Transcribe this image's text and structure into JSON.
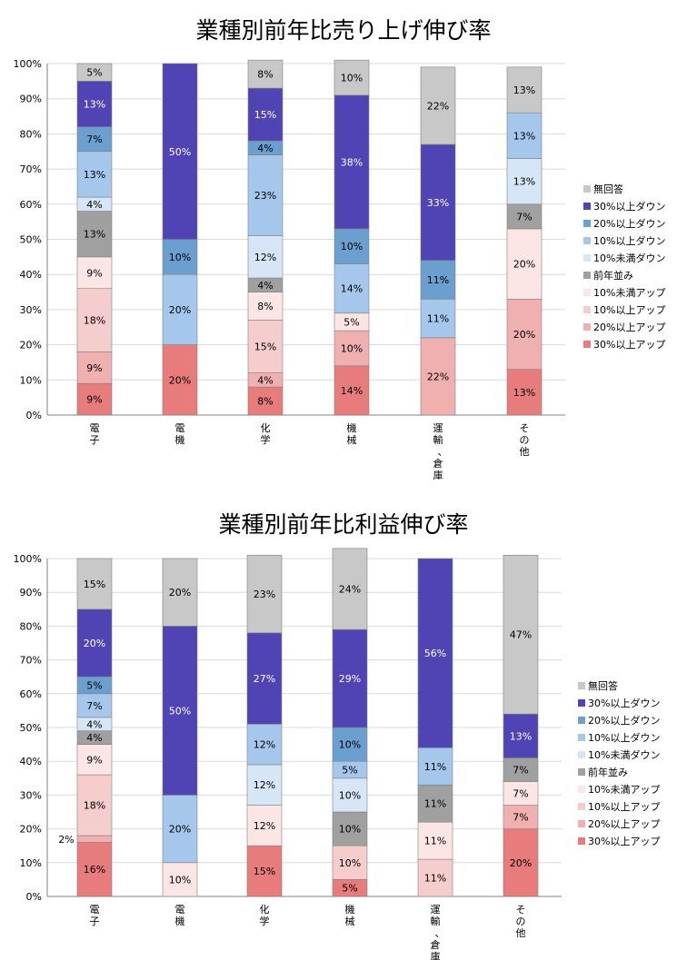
{
  "series_colors": {
    "no_answer": "#c8c8c8",
    "down_30": "#5044b4",
    "down_20": "#6a9fd0",
    "down_10": "#a6c7ec",
    "down_lt10": "#d6e6f7",
    "flat": "#a0a0a0",
    "up_lt10": "#fbe5e5",
    "up_10": "#f5cdcd",
    "up_20": "#f0b0b0",
    "up_30": "#e87b7b"
  },
  "chart_data": [
    {
      "type": "bar",
      "stacked": true,
      "title": "業種別前年比売り上げ伸び率",
      "categories": [
        "電子",
        "電機",
        "化学",
        "機械",
        "運輸、倉庫",
        "その他"
      ],
      "ylim": [
        0,
        100
      ],
      "yticks": [
        "0%",
        "10%",
        "20%",
        "30%",
        "40%",
        "50%",
        "60%",
        "70%",
        "80%",
        "90%",
        "100%"
      ],
      "grid": true,
      "legend_position": "right",
      "series": [
        {
          "key": "up_30",
          "name": "30%以上アップ",
          "values": [
            9,
            20,
            8,
            14,
            0,
            13
          ],
          "labels": [
            "9%",
            "20%",
            "8%",
            "14%",
            "",
            "13%"
          ]
        },
        {
          "key": "up_20",
          "name": "20%以上アップ",
          "values": [
            9,
            0,
            4,
            10,
            22,
            20
          ],
          "labels": [
            "9%",
            "",
            "4%",
            "10%",
            "22%",
            "20%"
          ]
        },
        {
          "key": "up_10",
          "name": "10%以上アップ",
          "values": [
            18,
            0,
            15,
            0,
            0,
            0
          ],
          "labels": [
            "18%",
            "",
            "15%",
            "",
            "",
            ""
          ]
        },
        {
          "key": "up_lt10",
          "name": "10%未満アップ",
          "values": [
            9,
            0,
            8,
            5,
            0,
            20
          ],
          "labels": [
            "9%",
            "",
            "8%",
            "5%",
            "",
            "20%"
          ]
        },
        {
          "key": "flat",
          "name": "前年並み",
          "values": [
            13,
            0,
            4,
            0,
            0,
            7
          ],
          "labels": [
            "13%",
            "",
            "4%",
            "",
            "",
            "7%"
          ]
        },
        {
          "key": "down_lt10",
          "name": "10%未満ダウン",
          "values": [
            4,
            0,
            12,
            0,
            0,
            13
          ],
          "labels": [
            "4%",
            "",
            "12%",
            "",
            "",
            "13%"
          ]
        },
        {
          "key": "down_10",
          "name": "10%以上ダウン",
          "values": [
            13,
            20,
            23,
            14,
            11,
            13
          ],
          "labels": [
            "13%",
            "20%",
            "23%",
            "14%",
            "11%",
            "13%"
          ]
        },
        {
          "key": "down_20",
          "name": "20%以上ダウン",
          "values": [
            7,
            10,
            4,
            10,
            11,
            0
          ],
          "labels": [
            "7%",
            "10%",
            "4%",
            "10%",
            "11%",
            ""
          ]
        },
        {
          "key": "down_30",
          "name": "30%以上ダウン",
          "values": [
            13,
            50,
            15,
            38,
            33,
            0
          ],
          "labels": [
            "13%",
            "50%",
            "15%",
            "38%",
            "33%",
            ""
          ]
        },
        {
          "key": "no_answer",
          "name": "無回答",
          "values": [
            5,
            0,
            8,
            10,
            22,
            13
          ],
          "labels": [
            "5%",
            "",
            "8%",
            "10%",
            "22%",
            "13%"
          ]
        }
      ]
    },
    {
      "type": "bar",
      "stacked": true,
      "title": "業種別前年比利益伸び率",
      "categories": [
        "電子",
        "電機",
        "化学",
        "機械",
        "運輸、倉庫",
        "その他"
      ],
      "ylim": [
        0,
        100
      ],
      "yticks": [
        "0%",
        "10%",
        "20%",
        "30%",
        "40%",
        "50%",
        "60%",
        "70%",
        "80%",
        "90%",
        "100%"
      ],
      "grid": true,
      "legend_position": "right",
      "series": [
        {
          "key": "up_30",
          "name": "30%以上アップ",
          "values": [
            16,
            0,
            15,
            5,
            0,
            20
          ],
          "labels": [
            "16%",
            "",
            "15%",
            "5%",
            "",
            "20%"
          ]
        },
        {
          "key": "up_20",
          "name": "20%以上アップ",
          "values": [
            2,
            0,
            0,
            0,
            0,
            7
          ],
          "labels": [
            "2%",
            "",
            "",
            "",
            "",
            "7%"
          ]
        },
        {
          "key": "up_10",
          "name": "10%以上アップ",
          "values": [
            18,
            0,
            0,
            10,
            11,
            0
          ],
          "labels": [
            "18%",
            "",
            "",
            "10%",
            "11%",
            ""
          ]
        },
        {
          "key": "up_lt10",
          "name": "10%未満アップ",
          "values": [
            9,
            10,
            12,
            0,
            11,
            7
          ],
          "labels": [
            "9%",
            "10%",
            "12%",
            "",
            "11%",
            "7%"
          ]
        },
        {
          "key": "flat",
          "name": "前年並み",
          "values": [
            4,
            0,
            0,
            10,
            11,
            7
          ],
          "labels": [
            "4%",
            "",
            "",
            "10%",
            "11%",
            "7%"
          ]
        },
        {
          "key": "down_lt10",
          "name": "10%未満ダウン",
          "values": [
            4,
            0,
            12,
            10,
            0,
            0
          ],
          "labels": [
            "4%",
            "",
            "12%",
            "10%",
            "",
            ""
          ]
        },
        {
          "key": "down_10",
          "name": "10%以上ダウン",
          "values": [
            7,
            20,
            12,
            5,
            11,
            0
          ],
          "labels": [
            "7%",
            "20%",
            "12%",
            "5%",
            "11%",
            ""
          ]
        },
        {
          "key": "down_20",
          "name": "20%以上ダウン",
          "values": [
            5,
            0,
            0,
            10,
            0,
            0
          ],
          "labels": [
            "5%",
            "",
            "",
            "10%",
            "",
            ""
          ]
        },
        {
          "key": "down_30",
          "name": "30%以上ダウン",
          "values": [
            20,
            50,
            27,
            29,
            56,
            13
          ],
          "labels": [
            "20%",
            "50%",
            "27%",
            "29%",
            "56%",
            "13%"
          ]
        },
        {
          "key": "no_answer",
          "name": "無回答",
          "values": [
            15,
            20,
            23,
            24,
            0,
            47
          ],
          "labels": [
            "15%",
            "20%",
            "23%",
            "24%",
            "",
            "47%"
          ]
        }
      ]
    }
  ]
}
